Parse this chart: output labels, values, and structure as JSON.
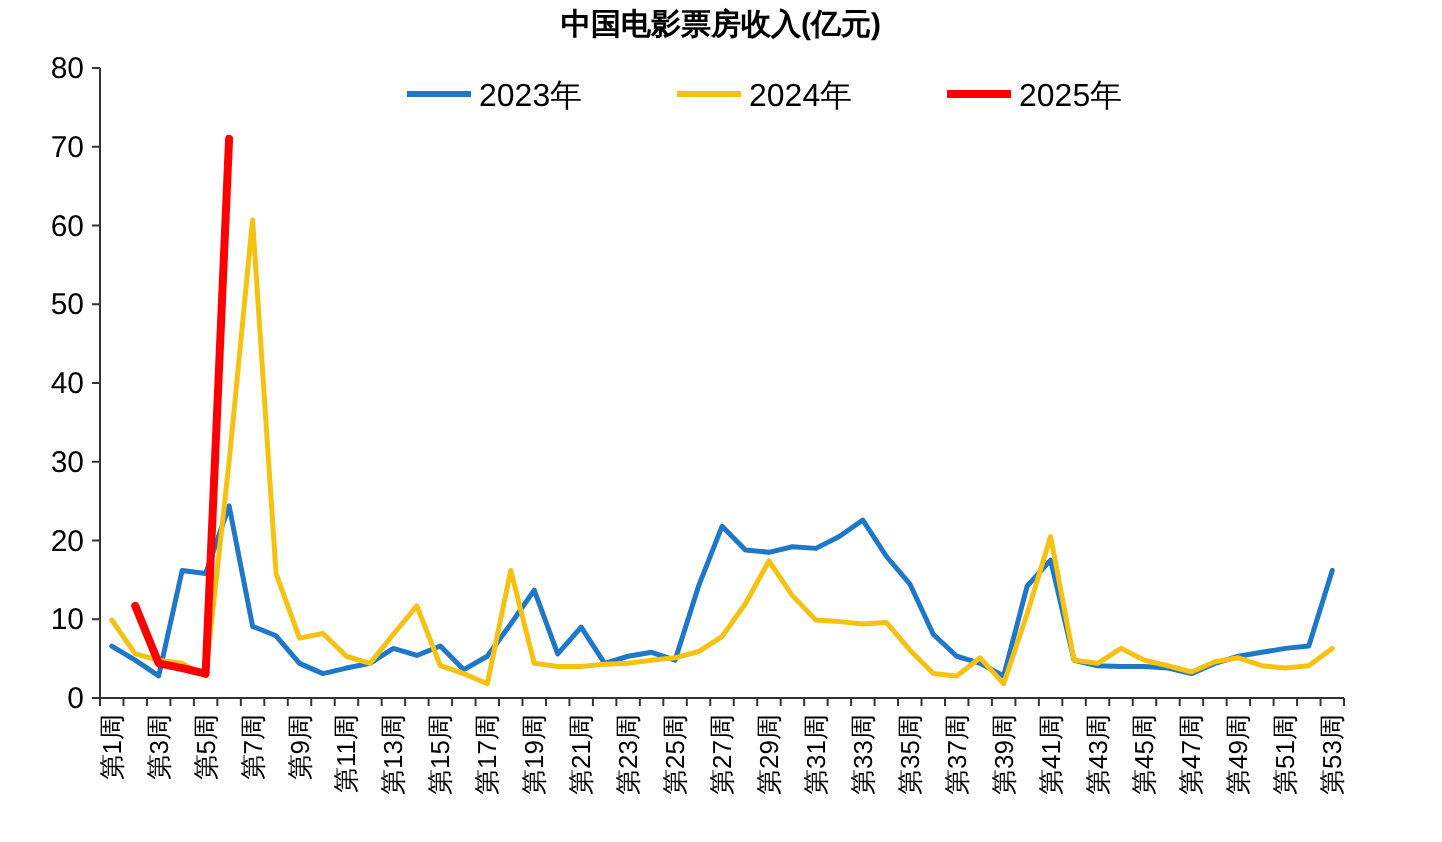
{
  "chart_data": {
    "type": "line",
    "title": "中国电影票房收入(亿元)",
    "categories": [
      "第1周",
      null,
      "第3周",
      null,
      "第5周",
      null,
      "第7周",
      null,
      "第9周",
      null,
      "第11周",
      null,
      "第13周",
      null,
      "第15周",
      null,
      "第17周",
      null,
      "第19周",
      null,
      "第21周",
      null,
      "第23周",
      null,
      "第25周",
      null,
      "第27周",
      null,
      "第29周",
      null,
      "第31周",
      null,
      "第33周",
      null,
      "第35周",
      null,
      "第37周",
      null,
      "第39周",
      null,
      "第41周",
      null,
      "第43周",
      null,
      "第45周",
      null,
      "第47周",
      null,
      "第49周",
      null,
      "第51周",
      null,
      "第53周"
    ],
    "series": [
      {
        "name": "2023年",
        "color": "#1f77c8",
        "values": [
          6.6,
          4.8,
          2.8,
          16.2,
          15.8,
          24.4,
          9.1,
          7.9,
          4.4,
          3.1,
          3.8,
          4.4,
          6.3,
          5.4,
          6.6,
          3.6,
          5.3,
          9.4,
          13.7,
          5.6,
          9,
          4.4,
          5.3,
          5.8,
          4.8,
          14.2,
          21.8,
          18.8,
          18.5,
          19.2,
          19,
          20.5,
          22.6,
          18,
          14.5,
          8.1,
          5.3,
          4.4,
          2.8,
          14.2,
          17.5,
          4.8,
          4.1,
          4,
          4,
          3.8,
          3.1,
          4.4,
          5.3,
          5.8,
          6.3,
          6.6,
          16.2
        ]
      },
      {
        "name": "2024年",
        "color": "#f5c211",
        "values": [
          9.9,
          5.6,
          4.8,
          4.4,
          2.8,
          30,
          60.7,
          15.8,
          7.6,
          8.2,
          5.3,
          4.4,
          8.1,
          11.7,
          4.1,
          3.1,
          1.8,
          16.2,
          4.4,
          4,
          4,
          4.3,
          4.4,
          4.8,
          5.1,
          5.9,
          7.8,
          12,
          17.4,
          13,
          9.9,
          9.7,
          9.4,
          9.6,
          6.1,
          3.1,
          2.8,
          5.1,
          1.8,
          10.7,
          20.5,
          4.8,
          4.4,
          6.3,
          4.8,
          4.1,
          3.3,
          4.6,
          5.1,
          4.1,
          3.8,
          4.1,
          6.3
        ]
      },
      {
        "name": "2025年",
        "color": "#ff0000",
        "values": [
          null,
          11.7,
          4.4,
          3.8,
          3.1,
          71,
          null,
          null,
          null,
          null,
          null,
          null,
          null,
          null,
          null,
          null,
          null,
          null,
          null,
          null,
          null,
          null,
          null,
          null,
          null,
          null,
          null,
          null,
          null,
          null,
          null,
          null,
          null,
          null,
          null,
          null,
          null,
          null,
          null,
          null,
          null,
          null,
          null,
          null,
          null,
          null,
          null,
          null,
          null,
          null,
          null,
          null,
          null
        ]
      }
    ],
    "ylim": [
      0,
      80
    ],
    "yticks": [
      0,
      10,
      20,
      30,
      40,
      50,
      60,
      70,
      80
    ],
    "grid": false,
    "legend": "top",
    "marker": "none",
    "line_style": "solid"
  }
}
